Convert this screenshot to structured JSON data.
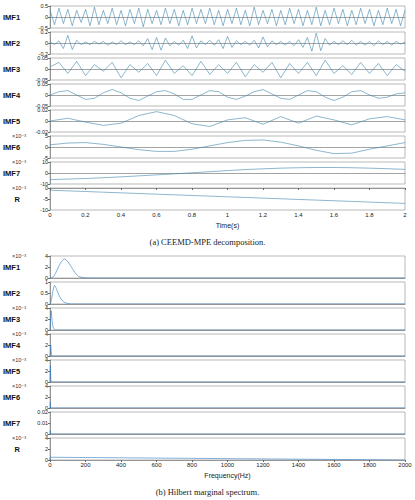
{
  "chart_data": [
    {
      "type": "line",
      "caption": "(a) CEEMD-MPE decomposition.",
      "x_label": "Time(s)",
      "color": "#3f86ad",
      "xlim": [
        0,
        2
      ],
      "xticks": [
        0,
        0.2,
        0.4,
        0.6,
        0.8,
        1,
        1.2,
        1.4,
        1.6,
        1.8,
        2
      ],
      "subplots": [
        {
          "label": "IMF1",
          "ylim": [
            -0.5,
            0.5
          ],
          "yticks": [
            -0.5,
            0,
            0.5
          ],
          "x": [
            0,
            0.025,
            0.05,
            0.075,
            0.1,
            0.125,
            0.15,
            0.175,
            0.2,
            0.225,
            0.25,
            0.275,
            0.3,
            0.325,
            0.35,
            0.375,
            0.4,
            0.425,
            0.45,
            0.475,
            0.5,
            0.525,
            0.55,
            0.575,
            0.6,
            0.625,
            0.65,
            0.675,
            0.7,
            0.725,
            0.75,
            0.775,
            0.8,
            0.825,
            0.85,
            0.875,
            0.9,
            0.925,
            0.95,
            0.975,
            1,
            1.025,
            1.05,
            1.075,
            1.1,
            1.125,
            1.15,
            1.175,
            1.2,
            1.225,
            1.25,
            1.275,
            1.3,
            1.325,
            1.35,
            1.375,
            1.4,
            1.425,
            1.45,
            1.475,
            1.5,
            1.525,
            1.55,
            1.575,
            1.6,
            1.625,
            1.65,
            1.675,
            1.7,
            1.725,
            1.75,
            1.775,
            1.8,
            1.825,
            1.85,
            1.875,
            1.9,
            1.925,
            1.95,
            1.975,
            2
          ],
          "values": [
            0.3,
            -0.35,
            0.4,
            -0.3,
            0.35,
            -0.4,
            0.3,
            -0.25,
            0.35,
            -0.4,
            0.45,
            -0.35,
            0.3,
            -0.3,
            0.4,
            -0.35,
            0.3,
            -0.4,
            0.35,
            -0.3,
            0.4,
            -0.45,
            0.35,
            -0.3,
            0.3,
            -0.35,
            0.4,
            -0.3,
            0.35,
            -0.4,
            0.3,
            -0.35,
            0.4,
            -0.3,
            0.35,
            -0.3,
            0.4,
            -0.35,
            0.3,
            -0.4,
            0.35,
            -0.3,
            0.4,
            -0.35,
            0.3,
            -0.4,
            0.45,
            -0.35,
            0.3,
            -0.3,
            0.35,
            -0.4,
            0.3,
            -0.35,
            0.4,
            -0.3,
            0.35,
            -0.4,
            0.3,
            -0.35,
            0.45,
            -0.4,
            0.3,
            -0.35,
            0.4,
            -0.3,
            0.35,
            -0.4,
            0.3,
            -0.35,
            0.4,
            -0.3,
            0.35,
            -0.4,
            0.3,
            -0.35,
            0.4,
            -0.3,
            0.35,
            -0.4,
            0.3
          ]
        },
        {
          "label": "IMF2",
          "ylim": [
            -0.2,
            0.2
          ],
          "yticks": [
            -0.2,
            0,
            0.2
          ],
          "x": [
            0,
            0.025,
            0.05,
            0.075,
            0.1,
            0.125,
            0.15,
            0.175,
            0.2,
            0.225,
            0.25,
            0.275,
            0.3,
            0.325,
            0.35,
            0.375,
            0.4,
            0.425,
            0.45,
            0.475,
            0.5,
            0.525,
            0.55,
            0.575,
            0.6,
            0.625,
            0.65,
            0.675,
            0.7,
            0.725,
            0.75,
            0.775,
            0.8,
            0.825,
            0.85,
            0.875,
            0.9,
            0.925,
            0.95,
            0.975,
            1,
            1.025,
            1.05,
            1.075,
            1.1,
            1.125,
            1.15,
            1.175,
            1.2,
            1.225,
            1.25,
            1.275,
            1.3,
            1.325,
            1.35,
            1.375,
            1.4,
            1.425,
            1.45,
            1.475,
            1.5,
            1.525,
            1.55,
            1.575,
            1.6,
            1.625,
            1.65,
            1.675,
            1.7,
            1.725,
            1.75,
            1.775,
            1.8,
            1.825,
            1.85,
            1.875,
            1.9,
            1.925,
            1.95,
            1.975,
            2
          ],
          "values": [
            0.02,
            -0.03,
            0.04,
            -0.1,
            0.14,
            -0.12,
            0.05,
            -0.03,
            0.02,
            -0.03,
            0.03,
            -0.02,
            0.03,
            -0.04,
            0.02,
            -0.03,
            0.04,
            -0.03,
            0.02,
            -0.03,
            0.04,
            -0.05,
            0.08,
            -0.12,
            0.1,
            -0.13,
            0.09,
            -0.05,
            0.03,
            -0.04,
            0.05,
            -0.1,
            0.13,
            -0.09,
            0.04,
            -0.03,
            0.05,
            -0.04,
            0.06,
            -0.1,
            0.12,
            -0.08,
            0.04,
            -0.03,
            0.03,
            -0.04,
            0.05,
            -0.09,
            0.11,
            -0.07,
            0.04,
            -0.03,
            0.03,
            -0.04,
            0.03,
            -0.05,
            0.06,
            -0.08,
            0.1,
            -0.15,
            0.18,
            -0.14,
            0.08,
            -0.04,
            0.03,
            -0.03,
            0.04,
            -0.03,
            0.05,
            -0.04,
            0.03,
            -0.04,
            0.03,
            -0.05,
            0.04,
            -0.03,
            0.03,
            -0.04,
            0.03,
            -0.02,
            0.02
          ]
        },
        {
          "label": "IMF3",
          "ylim": [
            -0.05,
            0.05
          ],
          "yticks": [
            -0.05,
            0,
            0.05
          ],
          "x": [
            0,
            0.05,
            0.1,
            0.15,
            0.2,
            0.25,
            0.3,
            0.35,
            0.4,
            0.45,
            0.5,
            0.55,
            0.6,
            0.65,
            0.7,
            0.75,
            0.8,
            0.85,
            0.9,
            0.95,
            1,
            1.05,
            1.1,
            1.15,
            1.2,
            1.25,
            1.3,
            1.35,
            1.4,
            1.45,
            1.5,
            1.55,
            1.6,
            1.65,
            1.7,
            1.75,
            1.8,
            1.85,
            1.9,
            1.95,
            2
          ],
          "values": [
            0.01,
            0.03,
            -0.02,
            0.035,
            -0.03,
            0.02,
            -0.01,
            0.03,
            -0.04,
            0.02,
            -0.015,
            0.025,
            -0.03,
            0.04,
            -0.02,
            0.015,
            -0.03,
            0.035,
            -0.025,
            0.02,
            -0.02,
            0.03,
            -0.035,
            0.02,
            -0.015,
            0.03,
            -0.04,
            0.025,
            -0.02,
            0.03,
            -0.03,
            0.04,
            -0.02,
            0.015,
            -0.025,
            0.03,
            -0.02,
            0.025,
            -0.03,
            0.02,
            -0.01
          ]
        },
        {
          "label": "IMF4",
          "ylim": [
            -0.05,
            0.05
          ],
          "yticks": [
            -0.05,
            0,
            0.05
          ],
          "x": [
            0,
            0.05,
            0.1,
            0.15,
            0.2,
            0.25,
            0.3,
            0.35,
            0.4,
            0.45,
            0.5,
            0.55,
            0.6,
            0.65,
            0.7,
            0.75,
            0.8,
            0.85,
            0.9,
            0.95,
            1,
            1.05,
            1.1,
            1.15,
            1.2,
            1.25,
            1.3,
            1.35,
            1.4,
            1.45,
            1.5,
            1.55,
            1.6,
            1.65,
            1.7,
            1.75,
            1.8,
            1.85,
            1.9,
            1.95,
            2
          ],
          "values": [
            0,
            0.015,
            0.02,
            0,
            -0.02,
            -0.015,
            0.01,
            0.025,
            0.01,
            -0.015,
            -0.025,
            -0.005,
            0.015,
            0.02,
            0.005,
            -0.02,
            -0.02,
            0,
            0.02,
            0.015,
            -0.01,
            -0.02,
            -0.005,
            0.015,
            0.025,
            0.005,
            -0.015,
            -0.02,
            0,
            0.02,
            0.015,
            -0.01,
            -0.025,
            -0.01,
            0.015,
            0.02,
            0,
            -0.015,
            -0.01,
            0.005,
            0.01
          ]
        },
        {
          "label": "IMF5",
          "ylim": [
            -0.02,
            0.02
          ],
          "yticks": [
            -0.02,
            0,
            0.02
          ],
          "x": [
            0,
            0.1,
            0.2,
            0.3,
            0.4,
            0.5,
            0.6,
            0.7,
            0.8,
            0.9,
            1,
            1.1,
            1.2,
            1.3,
            1.4,
            1.5,
            1.6,
            1.7,
            1.8,
            1.9,
            2
          ],
          "values": [
            0,
            0.005,
            -0.002,
            -0.008,
            -0.004,
            0.01,
            0.017,
            0.01,
            -0.005,
            -0.01,
            0.002,
            0.006,
            -0.006,
            0.008,
            -0.004,
            0.009,
            0.002,
            -0.007,
            0.004,
            0.008,
            0.002
          ]
        },
        {
          "label": "IMF6",
          "scale_label": "×10⁻³",
          "ylim": [
            -5,
            5
          ],
          "yticks": [
            -5,
            0,
            5
          ],
          "x": [
            0,
            0.1,
            0.2,
            0.3,
            0.4,
            0.5,
            0.6,
            0.7,
            0.8,
            0.9,
            1,
            1.1,
            1.2,
            1.3,
            1.4,
            1.5,
            1.6,
            1.7,
            1.8,
            1.9,
            2
          ],
          "values": [
            1,
            1.8,
            2,
            1.2,
            0,
            -1.2,
            -2,
            -2,
            -1,
            0.5,
            2,
            3,
            3.2,
            2.2,
            0.5,
            -1.5,
            -3,
            -2.8,
            -1,
            0.5,
            2
          ]
        },
        {
          "label": "IMF7",
          "scale_label": "×10⁻³",
          "ylim": [
            -10,
            10
          ],
          "yticks": [
            -10,
            0,
            10
          ],
          "x": [
            0,
            0.1,
            0.2,
            0.3,
            0.4,
            0.5,
            0.6,
            0.7,
            0.8,
            0.9,
            1,
            1.1,
            1.2,
            1.3,
            1.4,
            1.5,
            1.6,
            1.7,
            1.8,
            1.9,
            2
          ],
          "values": [
            -6,
            -5.5,
            -5,
            -4.3,
            -3.5,
            -2.6,
            -1.7,
            -0.8,
            0.2,
            1.2,
            2.2,
            3.1,
            3.8,
            4.4,
            4.8,
            5,
            5,
            4.8,
            4.4,
            3.9,
            3.3
          ]
        },
        {
          "label": "R",
          "scale_label": "×10⁻³",
          "ylim": [
            -10,
            0
          ],
          "yticks": [
            -10,
            -5,
            0
          ],
          "x": [
            0,
            0.1,
            0.2,
            0.3,
            0.4,
            0.5,
            0.6,
            0.7,
            0.8,
            0.9,
            1,
            1.1,
            1.2,
            1.3,
            1.4,
            1.5,
            1.6,
            1.7,
            1.8,
            1.9,
            2
          ],
          "values": [
            -1,
            -1.3,
            -1.6,
            -1.9,
            -2.2,
            -2.5,
            -2.8,
            -3.1,
            -3.4,
            -3.7,
            -4,
            -4.3,
            -4.6,
            -4.9,
            -5.2,
            -5.5,
            -5.8,
            -6.1,
            -6.4,
            -6.7,
            -7
          ]
        }
      ]
    },
    {
      "type": "line",
      "caption": "(b) Hilbert marginal spectrum.",
      "x_label": "Frequency(Hz)",
      "color": "#2f7bbf",
      "xlim": [
        0,
        2000
      ],
      "xticks": [
        0,
        200,
        400,
        600,
        800,
        1000,
        1200,
        1400,
        1600,
        1800,
        2000
      ],
      "subplots": [
        {
          "label": "IMF1",
          "scale_label": "×10⁻³",
          "ylim": [
            0,
            4
          ],
          "yticks": [
            0,
            2,
            4
          ],
          "x": [
            0,
            10,
            20,
            30,
            40,
            50,
            60,
            70,
            80,
            90,
            100,
            110,
            120,
            130,
            140,
            150,
            160,
            180,
            200,
            250,
            2000
          ],
          "values": [
            0,
            0.05,
            0.3,
            0.8,
            1.5,
            2.2,
            2.8,
            3.2,
            3.5,
            3.3,
            3,
            2.5,
            2,
            1.5,
            1,
            0.6,
            0.3,
            0.1,
            0.02,
            0,
            0
          ]
        },
        {
          "label": "IMF2",
          "ylim": [
            0,
            1
          ],
          "yticks": [
            0,
            0.5,
            1
          ],
          "x": [
            0,
            5,
            10,
            15,
            20,
            25,
            30,
            35,
            40,
            50,
            60,
            70,
            80,
            100,
            120,
            2000
          ],
          "values": [
            0,
            0.1,
            0.3,
            0.55,
            0.75,
            0.85,
            0.8,
            0.7,
            0.6,
            0.4,
            0.25,
            0.15,
            0.08,
            0.02,
            0,
            0
          ]
        },
        {
          "label": "IMF3",
          "scale_label": "×10⁻³",
          "ylim": [
            0,
            4
          ],
          "yticks": [
            0,
            2,
            4
          ],
          "x": [
            0,
            2,
            4,
            6,
            8,
            10,
            12,
            15,
            20,
            30,
            2000
          ],
          "values": [
            0,
            1.2,
            2.8,
            3.5,
            3,
            2.2,
            1.5,
            0.8,
            0.3,
            0,
            0
          ]
        },
        {
          "label": "IMF4",
          "scale_label": "×10⁻³",
          "ylim": [
            0,
            4
          ],
          "yticks": [
            0,
            2,
            4
          ],
          "x": [
            0,
            2,
            4,
            6,
            8,
            10,
            2000
          ],
          "values": [
            0,
            1.5,
            2,
            1,
            0.3,
            0,
            0
          ]
        },
        {
          "label": "IMF5",
          "scale_label": "×10⁻³",
          "ylim": [
            0,
            4
          ],
          "yticks": [
            0,
            2,
            4
          ],
          "x": [
            0,
            1,
            2,
            3,
            4,
            6,
            2000
          ],
          "values": [
            0,
            2,
            3,
            1.5,
            0.5,
            0,
            0
          ]
        },
        {
          "label": "IMF6",
          "scale_label": "×10⁻³",
          "ylim": [
            0,
            4
          ],
          "yticks": [
            0,
            2,
            4
          ],
          "x": [
            0,
            1,
            2,
            3,
            2000
          ],
          "values": [
            0,
            1,
            0.8,
            0,
            0
          ]
        },
        {
          "label": "IMF7",
          "ylim": [
            0,
            0.02
          ],
          "yticks": [
            0,
            0.01,
            0.02
          ],
          "x": [
            0,
            1,
            2,
            3,
            2000
          ],
          "values": [
            0,
            0.003,
            0.002,
            0,
            0
          ]
        },
        {
          "label": "R",
          "scale_label": "×10⁻³",
          "ylim": [
            0,
            4
          ],
          "yticks": [
            0,
            2,
            4
          ],
          "x": [
            0,
            1,
            2000
          ],
          "values": [
            0,
            0.5,
            0
          ]
        }
      ]
    }
  ]
}
